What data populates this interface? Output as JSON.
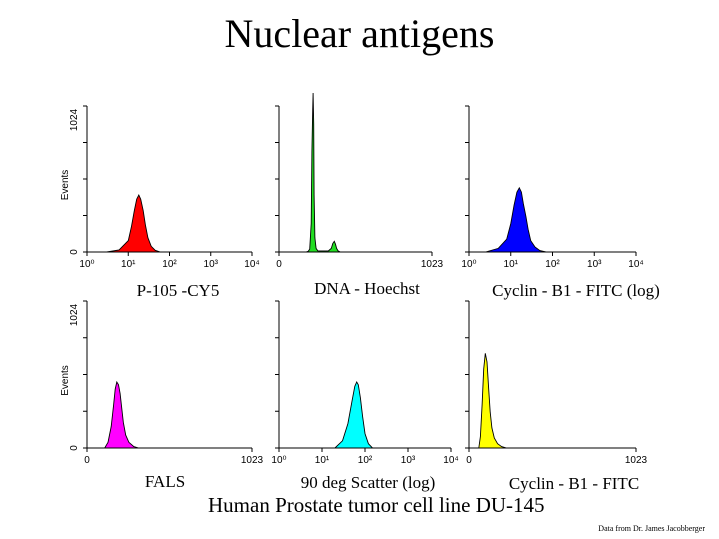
{
  "title": "Nuclear antigens",
  "footer": "Human Prostate tumor cell line DU-145",
  "credit": "Data from Dr. James Jacobberger",
  "colors": {
    "red": "#ff0000",
    "green": "#22dd22",
    "blue": "#0000ff",
    "magenta": "#ff00ff",
    "cyan": "#00ffff",
    "yellow": "#ffff00"
  },
  "chart_data": [
    {
      "type": "area",
      "title": "P-105 -CY5",
      "ylabel": "Events",
      "xscale": "log",
      "xlim": [
        1,
        10000
      ],
      "ylim": [
        0,
        1024
      ],
      "xticks": [
        "10⁰",
        "10¹",
        "10²",
        "10³",
        "10⁴"
      ],
      "yticks": [
        "0",
        "1024"
      ],
      "color": "#ff0000",
      "x": [
        3.0,
        6.0,
        10.0,
        12.0,
        14.0,
        16.0,
        18.0,
        20.0,
        23.0,
        26.0,
        30.0,
        36.0,
        45.0,
        60.0
      ],
      "y": [
        0,
        15,
        80,
        180,
        290,
        370,
        400,
        370,
        290,
        190,
        100,
        40,
        12,
        0
      ]
    },
    {
      "type": "area",
      "title": "DNA - Hoechst",
      "ylabel": "",
      "xscale": "linear",
      "xlim": [
        0,
        1023
      ],
      "ylim": [
        0,
        1024
      ],
      "xticks": [
        "0",
        "1023"
      ],
      "yticks": [],
      "color": "#22dd22",
      "x": [
        180,
        195,
        205,
        215,
        220,
        225,
        228,
        232,
        235,
        240,
        248,
        260,
        330,
        350,
        360,
        370,
        378,
        385,
        395,
        410
      ],
      "y": [
        0,
        5,
        20,
        200,
        700,
        1000,
        1115,
        900,
        400,
        100,
        25,
        8,
        8,
        25,
        60,
        75,
        55,
        25,
        8,
        0
      ]
    },
    {
      "type": "area",
      "title": "Cyclin - B1 - FITC (log)",
      "ylabel": "",
      "xscale": "log",
      "xlim": [
        1,
        10000
      ],
      "ylim": [
        0,
        1024
      ],
      "xticks": [
        "10⁰",
        "10¹",
        "10²",
        "10³",
        "10⁴"
      ],
      "yticks": [],
      "color": "#0000ff",
      "x": [
        2.5,
        5.0,
        8.0,
        10.0,
        12.0,
        14.0,
        16.0,
        18.0,
        20.0,
        23.0,
        26.0,
        30.0,
        38.0,
        50.0,
        70.0
      ],
      "y": [
        0,
        25,
        90,
        200,
        330,
        420,
        450,
        420,
        340,
        250,
        160,
        80,
        35,
        10,
        0
      ]
    },
    {
      "type": "area",
      "title": "FALS",
      "ylabel": "Events",
      "xscale": "linear",
      "xlim": [
        0,
        1023
      ],
      "ylim": [
        0,
        1024
      ],
      "xticks": [
        "0",
        "1023"
      ],
      "yticks": [
        "0",
        "1024"
      ],
      "color": "#ff00ff",
      "x": [
        110,
        130,
        150,
        165,
        175,
        185,
        195,
        205,
        215,
        225,
        240,
        260,
        290,
        320
      ],
      "y": [
        0,
        40,
        150,
        300,
        410,
        460,
        440,
        380,
        280,
        180,
        90,
        40,
        10,
        0
      ]
    },
    {
      "type": "area",
      "title": "90 deg Scatter (log)",
      "ylabel": "",
      "xscale": "log",
      "xlim": [
        1,
        10000
      ],
      "ylim": [
        0,
        1024
      ],
      "xticks": [
        "10⁰",
        "10¹",
        "10²",
        "10³",
        "10⁴"
      ],
      "yticks": [],
      "color": "#00ffff",
      "x": [
        20.0,
        30.0,
        40.0,
        50.0,
        58.0,
        64.0,
        70.0,
        78.0,
        88.0,
        100.0,
        120.0,
        150.0
      ],
      "y": [
        0,
        50,
        170,
        330,
        430,
        460,
        440,
        350,
        220,
        100,
        30,
        0
      ]
    },
    {
      "type": "area",
      "title": "Cyclin - B1 - FITC",
      "ylabel": "",
      "xscale": "linear",
      "xlim": [
        0,
        1023
      ],
      "ylim": [
        0,
        1024
      ],
      "xticks": [
        "0",
        "1023"
      ],
      "yticks": [],
      "color": "#ffff00",
      "x": [
        60,
        70,
        80,
        90,
        100,
        110,
        120,
        130,
        140,
        155,
        175,
        200,
        230
      ],
      "y": [
        0,
        80,
        300,
        550,
        660,
        600,
        420,
        250,
        140,
        70,
        30,
        10,
        0
      ]
    }
  ]
}
